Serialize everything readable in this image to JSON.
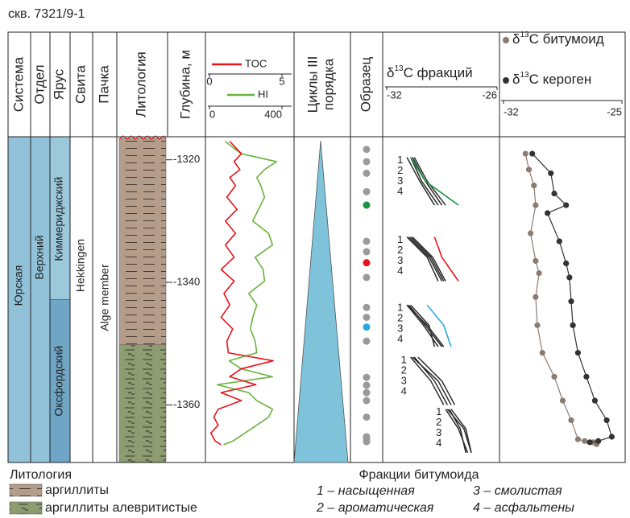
{
  "title": "скв. 7321/9-1",
  "headers": {
    "system": "Система",
    "series": "Отдел",
    "stage": "Ярус",
    "formation": "Свита",
    "member": "Пачка",
    "lithology": "Литология",
    "depth": "Глубина, м",
    "cycles": [
      "Циклы III",
      "порядка"
    ],
    "sample": "Образец"
  },
  "columns": {
    "system": "Юрская",
    "series": "Верхний",
    "stages": [
      "Киммериджский",
      "Оксфордский"
    ],
    "stage_boundary": -1342.8,
    "stage_colors": [
      "#9cc8dc",
      "#6fa6c6"
    ],
    "column_color": "#92c2da",
    "formation": "Hekkingen",
    "member": "Alge member",
    "lithology": {
      "upper": "claystone",
      "lower": "silty",
      "boundary": -1350.2
    }
  },
  "depth": {
    "lim": [
      -1316.5,
      -1369.4
    ],
    "ticks": [
      -1320,
      -1340,
      -1360
    ]
  },
  "logs": {
    "depths": [
      -1317,
      -1319,
      -1320.3,
      -1321.6,
      -1322.9,
      -1324.2,
      -1326.1,
      -1328.1,
      -1330,
      -1332,
      -1333.9,
      -1335.9,
      -1337.9,
      -1339.8,
      -1341.8,
      -1343.7,
      -1345.7,
      -1347.6,
      -1349.6,
      -1351.5,
      -1352.8,
      -1354.1,
      -1355.4,
      -1356.7,
      -1358,
      -1359.3,
      -1360.7,
      -1362,
      -1363.3,
      -1364.6,
      -1365.9,
      -1366.5
    ],
    "toc": {
      "name": "TOC",
      "color": "#e8141b",
      "lim": [
        0,
        5
      ],
      "ticks": [
        0,
        5
      ],
      "values": [
        1.4,
        2.2,
        1.7,
        2.1,
        1.4,
        1.8,
        1.2,
        1.9,
        1.1,
        1.8,
        1.1,
        1.7,
        0.8,
        1.7,
        1.0,
        1.4,
        0.8,
        1.6,
        1.2,
        1.3,
        4.4,
        2.2,
        1.4,
        3.2,
        0.8,
        2.2,
        0.6,
        0.3,
        0.6,
        0.1,
        0.4,
        0.8
      ]
    },
    "hi": {
      "name": "HI",
      "color": "#6ab33e",
      "lim": [
        0,
        400
      ],
      "ticks": [
        0,
        400
      ],
      "values": [
        87,
        174,
        370,
        304,
        261,
        283,
        304,
        270,
        239,
        326,
        348,
        252,
        296,
        304,
        217,
        261,
        239,
        226,
        252,
        261,
        109,
        174,
        348,
        43,
        217,
        261,
        348,
        326,
        261,
        196,
        130,
        78
      ]
    }
  },
  "samples": {
    "depths": [
      -1318.3,
      -1320.3,
      -1322.2,
      -1325.2,
      -1327.4,
      -1333.3,
      -1335,
      -1336.8,
      -1339.2,
      -1344.1,
      -1345.7,
      -1347.3,
      -1349.6,
      -1355.5,
      -1356.8,
      -1358,
      -1359.3,
      -1362,
      -1365.2,
      -1365.6,
      -1366
    ],
    "colors": [
      "#9a9a9a",
      "#9a9a9a",
      "#9a9a9a",
      "#9a9a9a",
      "#1a9641",
      "#9a9a9a",
      "#9a9a9a",
      "#e8141b",
      "#9a9a9a",
      "#9a9a9a",
      "#9a9a9a",
      "#29a8e0",
      "#9a9a9a",
      "#9a9a9a",
      "#9a9a9a",
      "#9a9a9a",
      "#9a9a9a",
      "#9a9a9a",
      "#9a9a9a",
      "#9a9a9a",
      "#9a9a9a"
    ]
  },
  "fractions": {
    "title": {
      "prefix": "δ",
      "sup": "13",
      "rest": "C фракций"
    },
    "lim": [
      -32,
      -26
    ],
    "ticks": [
      -32,
      -26
    ],
    "groups": [
      {
        "labels": [
          "1",
          "2",
          "3",
          "4"
        ],
        "depths": [
          -1319.6,
          -1323.5,
          -1327.4
        ],
        "series": [
          [
            -30.9,
            -30.2,
            -29.4
          ],
          [
            -30.7,
            -30.1,
            -29.2
          ],
          [
            -30.6,
            -29.9,
            -29.0
          ],
          [
            -30.5,
            -29.8,
            -28.8
          ]
        ],
        "total": [
          -30.7,
          -29.9,
          -28.1
        ],
        "total_color": "#1a9641"
      },
      {
        "labels": [
          "1",
          "2",
          "3",
          "4"
        ],
        "depths": [
          -1332.6,
          -1335.9,
          -1339.8
        ],
        "series": [
          [
            -30.9,
            -29.8,
            -29.2
          ],
          [
            -30.8,
            -29.7,
            -29.0
          ],
          [
            -30.7,
            -29.6,
            -28.9
          ],
          [
            -30.6,
            -29.5,
            -28.8
          ]
        ],
        "total": [
          -29.4,
          -29.0,
          -28.1
        ],
        "total_color": "#e8141b"
      },
      {
        "labels": [
          "1",
          "2",
          "3",
          "4"
        ],
        "depths": [
          -1343.7,
          -1347.0,
          -1350.5
        ],
        "series": [
          [
            -30.9,
            -30.0,
            -29.2
          ],
          [
            -30.8,
            -29.9,
            -29.0
          ],
          [
            -30.9,
            -29.8,
            -28.9
          ],
          [
            -30.7,
            -29.7,
            -29.4
          ]
        ],
        "total": [
          -29.8,
          -28.9,
          -28.5
        ],
        "total_color": "#29a8e0"
      },
      {
        "labels": [
          "1",
          "2",
          "3",
          "4"
        ],
        "depths": [
          -1352.2,
          -1356.1,
          -1360.0
        ],
        "series": [
          [
            -30.7,
            -29.6,
            -28.9
          ],
          [
            -30.5,
            -29.4,
            -28.7
          ],
          [
            -30.6,
            -29.2,
            -28.5
          ],
          [
            -30.3,
            -29.0,
            -28.3
          ]
        ]
      },
      {
        "labels": [
          "1",
          "2",
          "3",
          "4"
        ],
        "depths": [
          -1360.7,
          -1363.9,
          -1367.8
        ],
        "series": [
          [
            -28.8,
            -28.1,
            -27.6
          ],
          [
            -28.7,
            -27.8,
            -27.4
          ],
          [
            -28.6,
            -28.0,
            -27.7
          ],
          [
            -28.5,
            -27.7,
            -27.4
          ]
        ]
      }
    ]
  },
  "isotopes": {
    "lim": [
      -32,
      -25
    ],
    "ticks": [
      -32,
      -25
    ],
    "series": [
      {
        "name": {
          "prefix": "δ",
          "sup": "13",
          "rest": "C битумоид"
        },
        "color": "#8c7b70",
        "depths": [
          -1319,
          -1321.6,
          -1324.2,
          -1327.4,
          -1332,
          -1336.5,
          -1338.5,
          -1342.4,
          -1347,
          -1351.5,
          -1355.4,
          -1359.3,
          -1362.5,
          -1365.6,
          -1365.9,
          -1366.1,
          -1366.4
        ],
        "values": [
          -30.7,
          -30.5,
          -30.2,
          -30.1,
          -30.4,
          -30.1,
          -29.9,
          -30.1,
          -30.0,
          -29.7,
          -29.0,
          -28.5,
          -28.0,
          -27.6,
          -27.2,
          -26.7,
          -26.5
        ]
      },
      {
        "name": {
          "prefix": "δ",
          "sup": "13",
          "rest": "C кероген"
        },
        "color": "#333333",
        "depths": [
          -1319,
          -1322.2,
          -1325.5,
          -1327.4,
          -1328.7,
          -1333.3,
          -1336.9,
          -1339.2,
          -1343.1,
          -1347,
          -1351.5,
          -1355.4,
          -1359.3,
          -1362.5,
          -1365.2,
          -1365.9,
          -1366.1
        ],
        "values": [
          -30.3,
          -29.2,
          -29.0,
          -28.3,
          -29.4,
          -28.7,
          -28.3,
          -28.1,
          -28.0,
          -27.9,
          -27.6,
          -27.1,
          -26.6,
          -25.9,
          -25.6,
          -26.4,
          -26.9
        ]
      }
    ]
  },
  "legend": {
    "lithology_title": "Литология",
    "lithology": [
      {
        "label": "аргиллиты",
        "pattern": "claystone"
      },
      {
        "label": "аргиллиты алевритистые",
        "pattern": "silty"
      }
    ],
    "fractions_title": "Фракции битумоида",
    "fractions": [
      "1 – насыщенная",
      "3 – смолистая",
      "2 – ароматическая",
      "4 – асфальтены"
    ]
  }
}
